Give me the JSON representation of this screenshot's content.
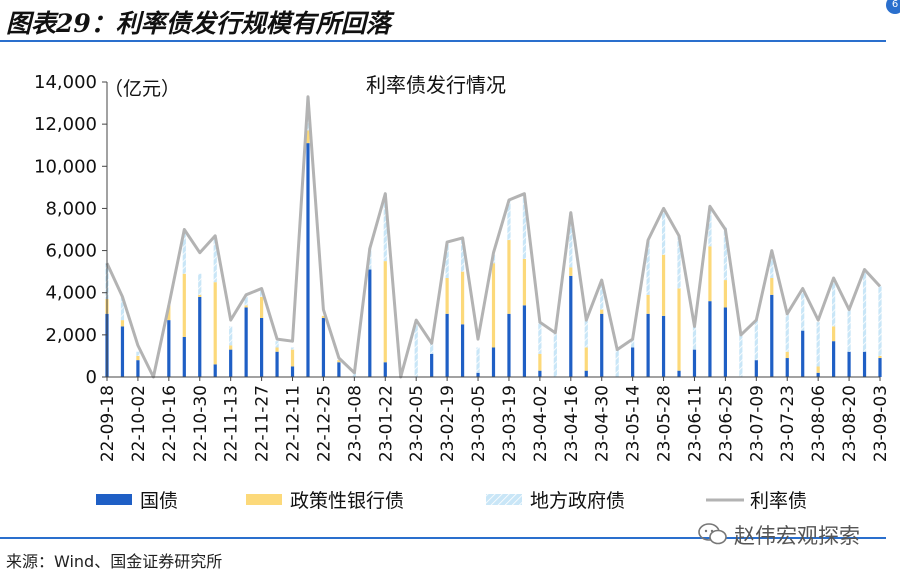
{
  "figure_label": "图表29：利率债发行规模有所回落",
  "source": "来源：Wind、国金证券研究所",
  "watermark": "赵伟宏观探索",
  "corner_badge": "6",
  "chart_data": {
    "type": "bar",
    "title": "利率债发行情况",
    "unit_label": "（亿元）",
    "ylim": [
      0,
      14000
    ],
    "yticks": [
      0,
      2000,
      4000,
      6000,
      8000,
      10000,
      12000,
      14000
    ],
    "ytick_labels": [
      "0",
      "2,000",
      "4,000",
      "6,000",
      "8,000",
      "10,000",
      "12,000",
      "14,000"
    ],
    "x_tick_labels": [
      "22-09-18",
      "22-10-02",
      "22-10-16",
      "22-10-30",
      "22-11-13",
      "22-11-27",
      "22-12-11",
      "22-12-25",
      "23-01-08",
      "23-01-22",
      "23-02-05",
      "23-02-19",
      "23-03-05",
      "23-03-19",
      "23-04-02",
      "23-04-16",
      "23-04-30",
      "23-05-14",
      "23-05-28",
      "23-06-11",
      "23-06-25",
      "23-07-09",
      "23-07-23",
      "23-08-06",
      "23-08-20",
      "23-09-03"
    ],
    "legend": [
      "国债",
      "政策性银行债",
      "地方政府债",
      "利率债"
    ],
    "colors": {
      "国债": "#1f5fc5",
      "政策性银行债": "#fcd97a",
      "地方政府债": "#c9e6f7",
      "利率债": "#b3b3b3"
    },
    "legend_position": "bottom",
    "grid": false,
    "series": [
      {
        "name": "国债",
        "values": [
          3000,
          2400,
          800,
          0,
          2700,
          1900,
          3800,
          600,
          1300,
          3300,
          2800,
          1200,
          500,
          11100,
          2800,
          700,
          0,
          5100,
          700,
          0,
          0,
          1100,
          3000,
          2500,
          200,
          1400,
          3000,
          3400,
          300,
          0,
          4800,
          300,
          3000,
          0,
          1400,
          3000,
          2900,
          300,
          1300,
          3600,
          3300,
          0,
          800,
          3900,
          900,
          2200,
          200,
          1700,
          1200,
          1200,
          900
        ]
      },
      {
        "name": "政策性银行债",
        "values": [
          700,
          300,
          200,
          0,
          700,
          3000,
          100,
          3900,
          200,
          100,
          1000,
          200,
          800,
          600,
          100,
          100,
          0,
          0,
          4800,
          0,
          0,
          0,
          1700,
          2500,
          0,
          4000,
          3500,
          2200,
          800,
          0,
          400,
          1100,
          200,
          0,
          0,
          900,
          2900,
          3900,
          0,
          2600,
          1300,
          0,
          0,
          800,
          300,
          0,
          300,
          700,
          0,
          0,
          100
        ]
      },
      {
        "name": "地方政府债",
        "values": [
          1700,
          1100,
          200,
          0,
          0,
          2000,
          1000,
          2100,
          900,
          500,
          300,
          300,
          100,
          1600,
          0,
          0,
          200,
          1000,
          3200,
          0,
          2700,
          500,
          1700,
          1600,
          1200,
          400,
          1900,
          3100,
          1500,
          2100,
          2600,
          1300,
          1400,
          1300,
          400,
          2600,
          2200,
          2500,
          1100,
          1900,
          2500,
          2000,
          1900,
          1300,
          1800,
          2000,
          2100,
          2300,
          2000,
          3900,
          3300
        ]
      },
      {
        "name": "利率债",
        "values": [
          5400,
          3800,
          1500,
          0,
          3400,
          7000,
          5900,
          6700,
          2700,
          3900,
          4200,
          1800,
          1700,
          13300,
          3200,
          900,
          200,
          6100,
          8700,
          0,
          2700,
          1600,
          6400,
          6600,
          1800,
          5900,
          8400,
          8700,
          2600,
          2100,
          7800,
          2700,
          4600,
          1300,
          1800,
          6500,
          8000,
          6700,
          2400,
          8100,
          7000,
          2000,
          2700,
          6000,
          3000,
          4200,
          2700,
          4700,
          3200,
          5100,
          4300
        ]
      }
    ]
  }
}
